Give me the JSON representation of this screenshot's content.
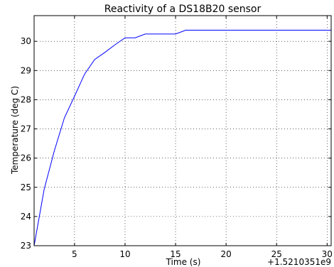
{
  "chart_data": {
    "type": "line",
    "title": "Reactivity of a DS18B20 sensor",
    "xlabel": "Time (s)",
    "ylabel": "Temperature (deg C)",
    "x_offset_label": "+1.5210351e9",
    "xlim": [
      1,
      30.4
    ],
    "ylim": [
      23,
      30.88
    ],
    "grid": true,
    "x_ticks": [
      5,
      10,
      15,
      20,
      25,
      30
    ],
    "y_ticks": [
      23,
      24,
      25,
      26,
      27,
      28,
      29,
      30
    ],
    "series": [
      {
        "color": "#0000ff",
        "x": [
          1,
          2,
          3,
          4,
          5,
          6,
          7,
          8,
          9,
          10,
          11,
          12,
          13,
          14,
          15,
          16,
          17,
          18,
          19,
          20,
          21,
          22,
          23,
          24,
          25,
          26,
          27,
          28,
          29,
          30,
          30.4
        ],
        "y": [
          23.0,
          24.94,
          26.25,
          27.38,
          28.12,
          28.88,
          29.38,
          29.62,
          29.88,
          30.12,
          30.12,
          30.25,
          30.25,
          30.25,
          30.25,
          30.38,
          30.38,
          30.38,
          30.38,
          30.38,
          30.38,
          30.38,
          30.38,
          30.38,
          30.38,
          30.38,
          30.38,
          30.38,
          30.38,
          30.38,
          30.38
        ]
      }
    ]
  }
}
